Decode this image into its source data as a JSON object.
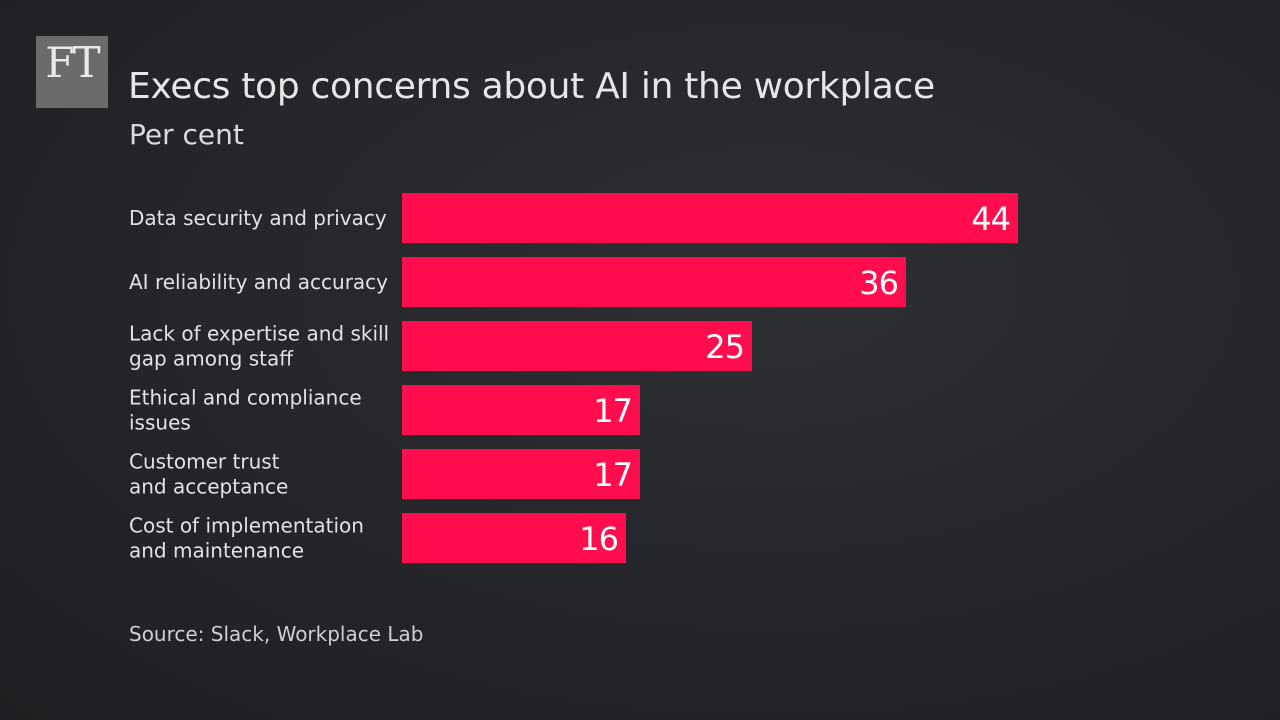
{
  "logo": {
    "text": "FT"
  },
  "chart_data": {
    "type": "bar",
    "orientation": "horizontal",
    "title": "Execs top concerns about AI in the workplace",
    "subtitle": "Per cent",
    "categories": [
      "Data security and privacy",
      "AI reliability and accuracy",
      "Lack of expertise and skill gap among staff",
      "Ethical and compliance issues",
      "Customer trust and acceptance",
      "Cost of implementation and maintenance"
    ],
    "category_lines": [
      [
        "Data security and privacy"
      ],
      [
        "AI reliability and accuracy"
      ],
      [
        "Lack of expertise and skill",
        "gap among staff"
      ],
      [
        "Ethical and compliance",
        "issues"
      ],
      [
        "Customer trust",
        "and acceptance"
      ],
      [
        "Cost of implementation",
        "and maintenance"
      ]
    ],
    "values": [
      44,
      36,
      25,
      17,
      17,
      16
    ],
    "xlim": [
      0,
      44
    ],
    "bar_color": "#ff0d4c",
    "grid": false,
    "legend": "none",
    "data_labels": "inside-end",
    "source": "Source: Slack, Workplace Lab"
  }
}
